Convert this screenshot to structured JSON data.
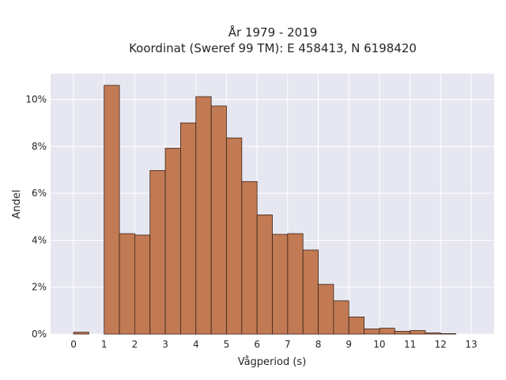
{
  "chart_data": {
    "type": "bar",
    "title_line1": "År 1979 - 2019",
    "title_line2": "Koordinat (Sweref 99 TM): E 458413, N 6198420",
    "xlabel": "Vågperiod (s)",
    "ylabel": "Andel",
    "bin_width": 0.5,
    "bins": [
      {
        "x": 0.0,
        "value": 0.08
      },
      {
        "x": 1.0,
        "value": 10.6
      },
      {
        "x": 1.5,
        "value": 4.28
      },
      {
        "x": 2.0,
        "value": 4.22
      },
      {
        "x": 2.5,
        "value": 6.97
      },
      {
        "x": 3.0,
        "value": 7.92
      },
      {
        "x": 3.5,
        "value": 9.0
      },
      {
        "x": 4.0,
        "value": 10.12
      },
      {
        "x": 4.5,
        "value": 9.72
      },
      {
        "x": 5.0,
        "value": 8.36
      },
      {
        "x": 5.5,
        "value": 6.5
      },
      {
        "x": 6.0,
        "value": 5.08
      },
      {
        "x": 6.5,
        "value": 4.25
      },
      {
        "x": 7.0,
        "value": 4.28
      },
      {
        "x": 7.5,
        "value": 3.58
      },
      {
        "x": 8.0,
        "value": 2.12
      },
      {
        "x": 8.5,
        "value": 1.42
      },
      {
        "x": 9.0,
        "value": 0.73
      },
      {
        "x": 9.5,
        "value": 0.22
      },
      {
        "x": 10.0,
        "value": 0.25
      },
      {
        "x": 10.5,
        "value": 0.12
      },
      {
        "x": 11.0,
        "value": 0.15
      },
      {
        "x": 11.5,
        "value": 0.05
      },
      {
        "x": 12.0,
        "value": 0.02
      }
    ],
    "xlim": [
      -0.75,
      13.75
    ],
    "ylim": [
      0,
      11.1
    ],
    "x_ticks": [
      0,
      1,
      2,
      3,
      4,
      5,
      6,
      7,
      8,
      9,
      10,
      11,
      12,
      13
    ],
    "y_ticks": [
      0,
      2,
      4,
      6,
      8,
      10
    ],
    "y_tick_labels": [
      "0%",
      "2%",
      "4%",
      "6%",
      "8%",
      "10%"
    ],
    "bar_color": "#c17a54",
    "bar_edge_color": "#3a2418",
    "plot_background": "#e6e7f0",
    "grid": true
  }
}
